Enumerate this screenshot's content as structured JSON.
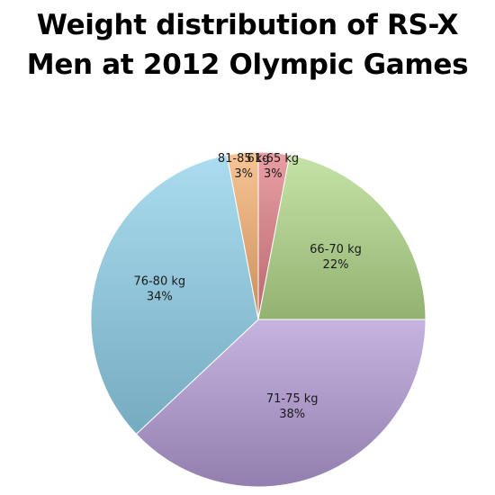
{
  "chart_data": {
    "type": "pie",
    "title_lines": [
      "Weight distribution of RS-X",
      "Men at 2012 Olympic Games"
    ],
    "slices": [
      {
        "label": "61-65 kg",
        "value": 3,
        "value_label": "3%",
        "color": "#e07f86"
      },
      {
        "label": "66-70 kg",
        "value": 22,
        "value_label": "22%",
        "color": "#b3d98a"
      },
      {
        "label": "71-75 kg",
        "value": 38,
        "value_label": "38%",
        "color": "#b39bd6"
      },
      {
        "label": "76-80 kg",
        "value": 34,
        "value_label": "34%",
        "color": "#8fd0ea"
      },
      {
        "label": "81-85 kg",
        "value": 3,
        "value_label": "3%",
        "color": "#f5b070"
      }
    ],
    "start_at": "top",
    "direction": "clockwise",
    "legend": "none",
    "labels": "inside"
  }
}
